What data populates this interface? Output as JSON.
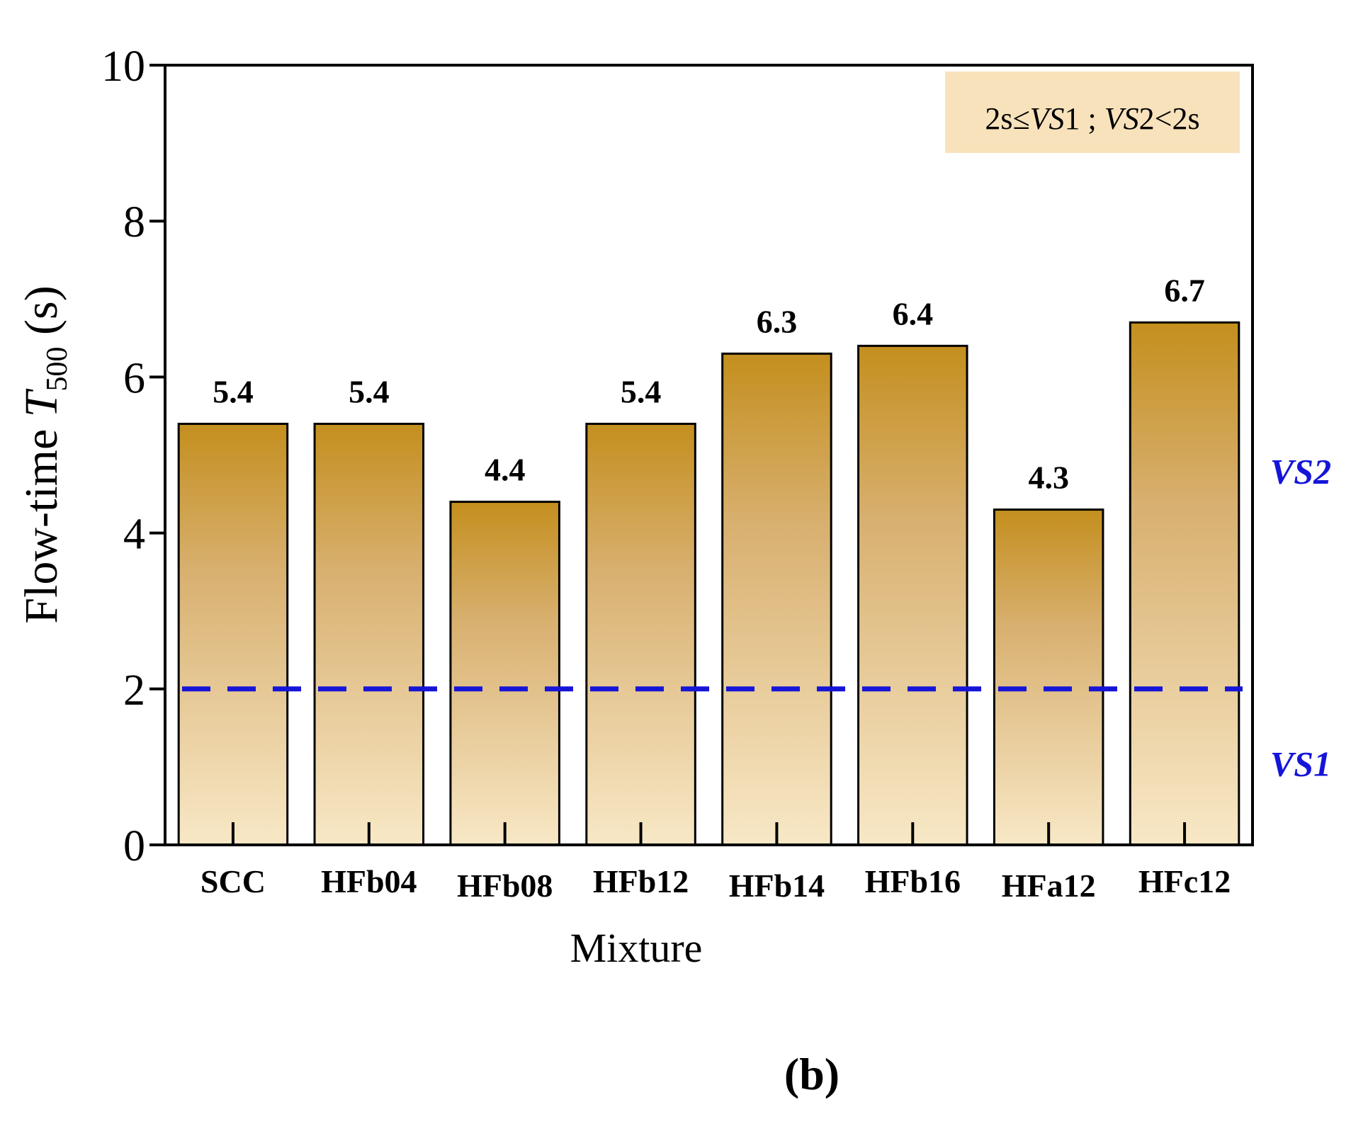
{
  "chart_data": {
    "type": "bar",
    "categories": [
      "SCC",
      "HFb04",
      "HFb08",
      "HFb12",
      "HFb14",
      "HFb16",
      "HFa12",
      "HFc12"
    ],
    "values": [
      5.4,
      5.4,
      4.4,
      5.4,
      6.3,
      6.4,
      4.3,
      6.7
    ],
    "data_labels": [
      "5.4",
      "5.4",
      "4.4",
      "5.4",
      "6.3",
      "6.4",
      "4.3",
      "6.7"
    ],
    "ylabel": {
      "main": "Flow-time ",
      "var": "T",
      "sub": "500",
      "unit": " (s)"
    },
    "xlabel": "Mixture",
    "ylim": [
      0,
      10
    ],
    "yticks": [
      0,
      2,
      4,
      6,
      8,
      10
    ],
    "ytick_labels": [
      "0",
      "2",
      "4",
      "6",
      "8",
      "10"
    ],
    "threshold": {
      "value": 2,
      "color": "#1515d8"
    },
    "zone_labels": [
      {
        "text": "VS2",
        "y": 4.8
      },
      {
        "text": "VS1",
        "y": 1.05
      }
    ],
    "legend_box": {
      "a": "2s≤",
      "b": "VS",
      "c": "1 ;  ",
      "d": "VS",
      "e": "2<2s"
    },
    "panel_label": "(b)",
    "colors": {
      "bar_top": "#c48f1e",
      "bar_bottom": "#f8e8c6",
      "legend_bg": "#f8e2bb",
      "text": "#000000"
    }
  }
}
